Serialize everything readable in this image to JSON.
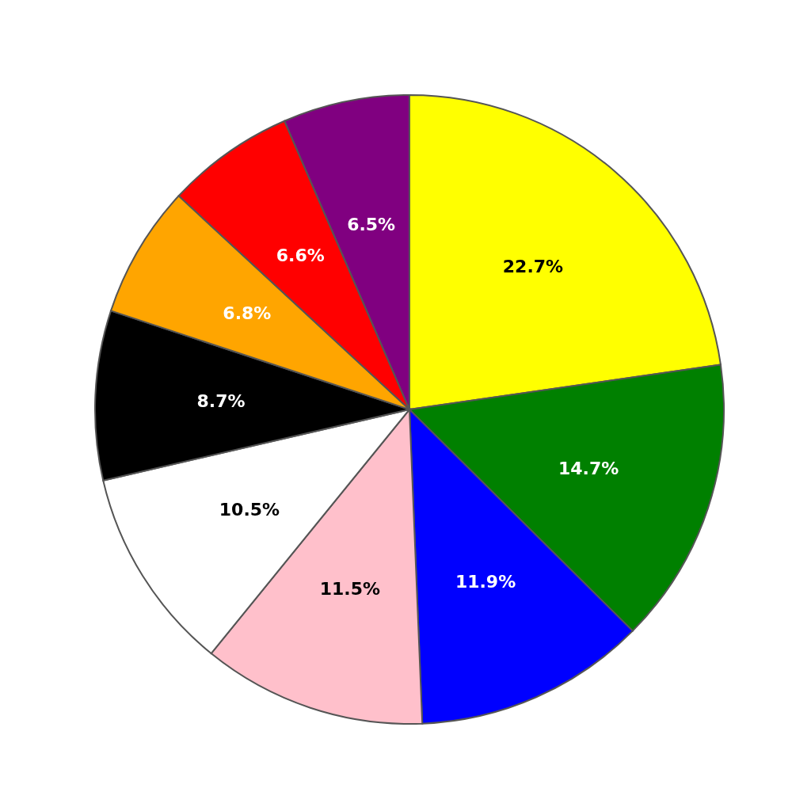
{
  "chart_data": {
    "type": "pie",
    "categories": [
      null,
      null,
      null,
      null,
      null,
      null,
      null,
      null,
      null
    ],
    "values": [
      22.7,
      14.7,
      11.9,
      11.5,
      10.5,
      8.7,
      6.8,
      6.6,
      6.5
    ],
    "colors": [
      "#ffff00",
      "#008000",
      "#0000ff",
      "#ffc0cb",
      "#ffffff",
      "#000000",
      "#ffa500",
      "#ff0000",
      "#800080"
    ],
    "value_labels": [
      "22.7%",
      "14.7%",
      "11.9%",
      "11.5%",
      "10.5%",
      "8.7%",
      "6.8%",
      "6.6%",
      "6.5%"
    ]
  }
}
